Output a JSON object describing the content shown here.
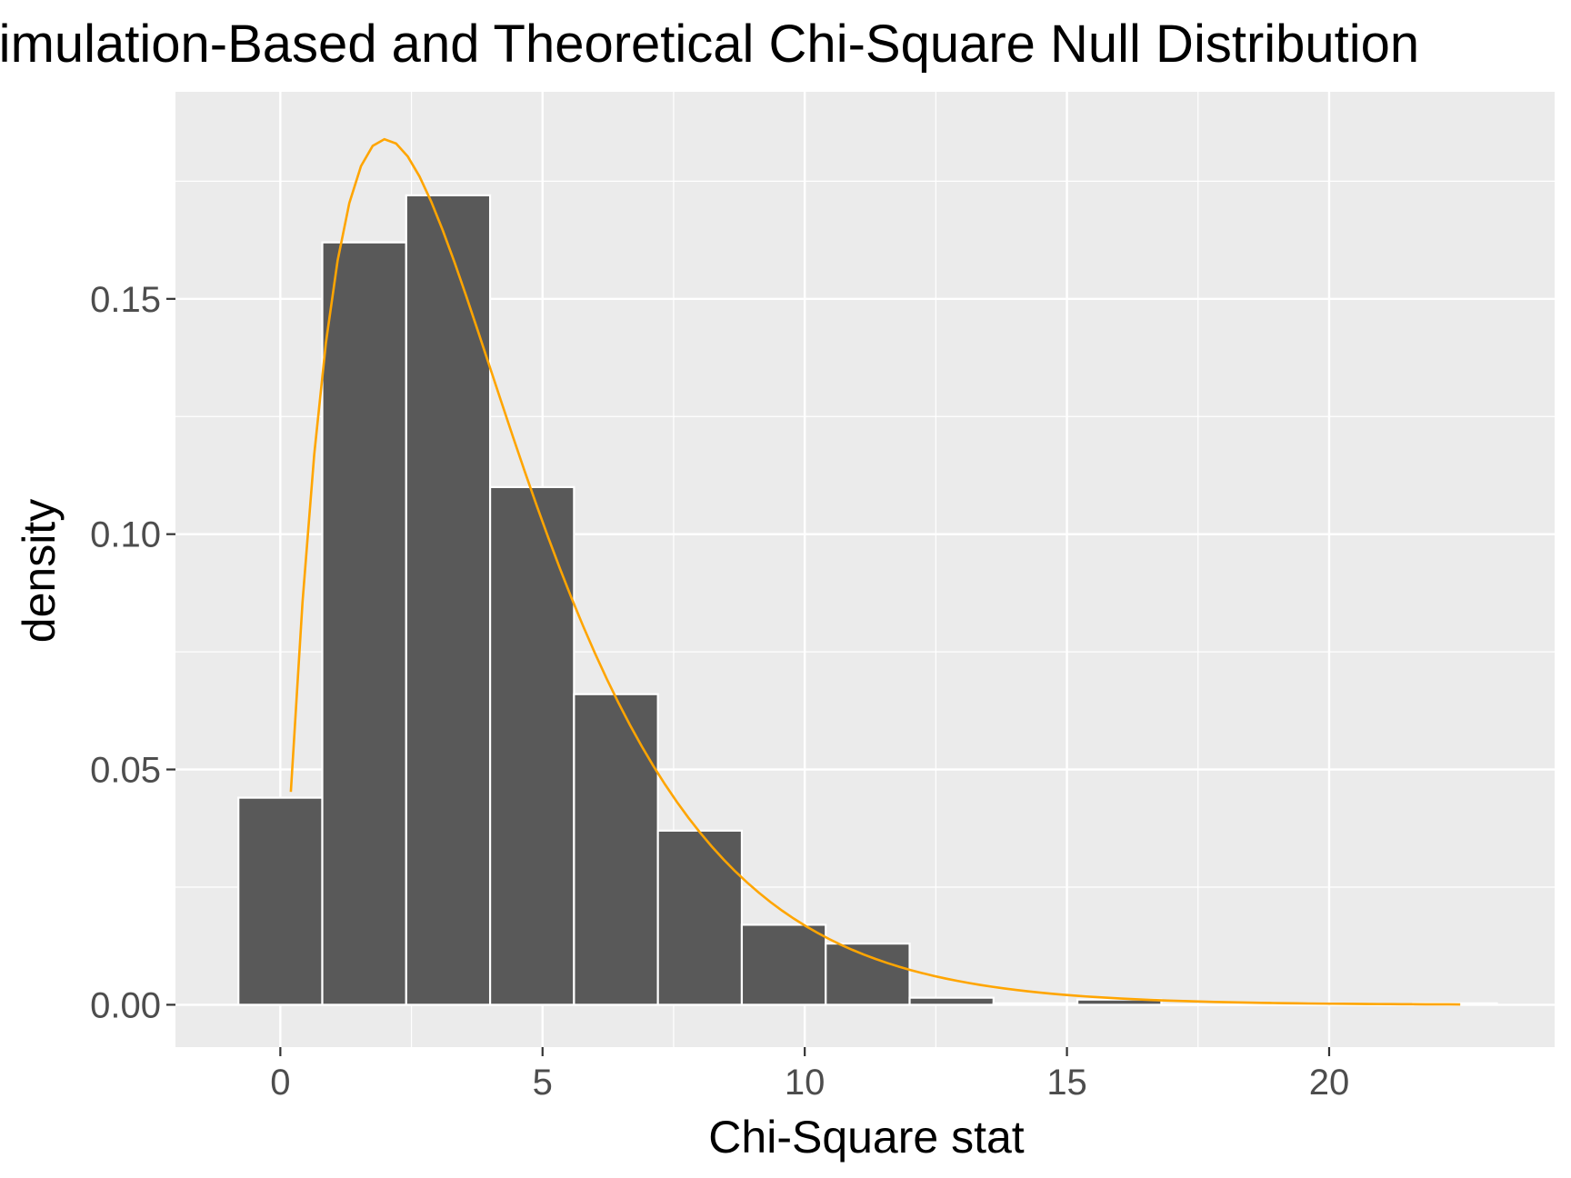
{
  "chart_data": {
    "type": "bar",
    "title": "Simulation-Based and Theoretical Chi-Square Null Distribution",
    "xlabel": "Chi-Square stat",
    "ylabel": "density",
    "xlim": [
      -2,
      24.3
    ],
    "ylim": [
      -0.009,
      0.194
    ],
    "x_ticks": [
      0,
      5,
      10,
      15,
      20
    ],
    "x_tick_labels": [
      "0",
      "5",
      "10",
      "15",
      "20"
    ],
    "y_ticks": [
      0.0,
      0.05,
      0.1,
      0.15
    ],
    "y_tick_labels": [
      "0.00",
      "0.05",
      "0.10",
      "0.15"
    ],
    "grid": true,
    "histogram": {
      "name": "Simulation-Based",
      "bin_edges": [
        -0.8,
        0.8,
        2.4,
        4.0,
        5.6,
        7.2,
        8.8,
        10.4,
        12.0,
        13.6,
        15.2,
        16.8,
        18.4,
        20.0,
        21.6,
        23.2
      ],
      "values": [
        0.044,
        0.162,
        0.172,
        0.11,
        0.066,
        0.037,
        0.017,
        0.013,
        0.0015,
        0.0003,
        0.0011,
        0.0,
        0.0,
        0.0,
        0.0003
      ],
      "fill": "#595959",
      "edge": "#ffffff"
    },
    "curve": {
      "name": "Theoretical Chi-Square",
      "df": 4,
      "x_range": [
        0.2,
        22.5
      ],
      "color": "#FFA500"
    },
    "colors": {
      "panel_background": "#EBEBEB",
      "grid": "#FFFFFF"
    }
  }
}
